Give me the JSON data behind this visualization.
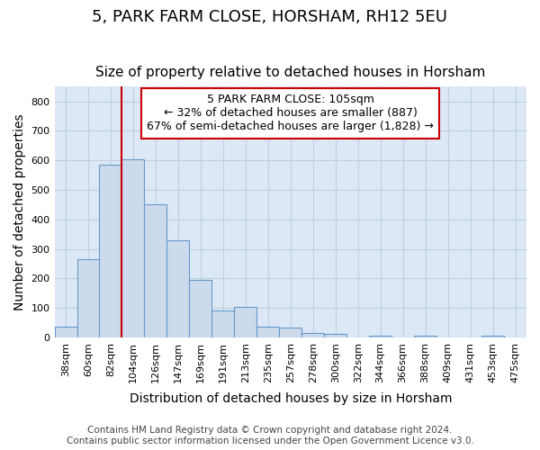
{
  "title": "5, PARK FARM CLOSE, HORSHAM, RH12 5EU",
  "subtitle": "Size of property relative to detached houses in Horsham",
  "xlabel": "Distribution of detached houses by size in Horsham",
  "ylabel": "Number of detached properties",
  "footer_line1": "Contains HM Land Registry data © Crown copyright and database right 2024.",
  "footer_line2": "Contains public sector information licensed under the Open Government Licence v3.0.",
  "bin_labels": [
    "38sqm",
    "60sqm",
    "82sqm",
    "104sqm",
    "126sqm",
    "147sqm",
    "169sqm",
    "191sqm",
    "213sqm",
    "235sqm",
    "257sqm",
    "278sqm",
    "300sqm",
    "322sqm",
    "344sqm",
    "366sqm",
    "388sqm",
    "409sqm",
    "431sqm",
    "453sqm",
    "475sqm"
  ],
  "bar_values": [
    37,
    265,
    585,
    603,
    452,
    330,
    195,
    90,
    102,
    37,
    32,
    15,
    12,
    0,
    5,
    0,
    7,
    0,
    0,
    7,
    0
  ],
  "bar_color": "#ccdaeb",
  "bar_edge_color": "#6699cc",
  "property_line_color": "#cc0000",
  "property_line_bin": 3,
  "annotation_text": "5 PARK FARM CLOSE: 105sqm\n← 32% of detached houses are smaller (887)\n67% of semi-detached houses are larger (1,828) →",
  "annotation_box_color": "#ffffff",
  "annotation_box_edge_color": "#cc0000",
  "ylim": [
    0,
    850
  ],
  "yticks": [
    0,
    100,
    200,
    300,
    400,
    500,
    600,
    700,
    800
  ],
  "fig_background_color": "#ffffff",
  "plot_bg_color": "#dce8f5",
  "grid_color": "#c0cfe0",
  "title_fontsize": 13,
  "subtitle_fontsize": 11,
  "axis_label_fontsize": 10,
  "tick_fontsize": 8,
  "footer_fontsize": 7.5,
  "annotation_fontsize": 9
}
